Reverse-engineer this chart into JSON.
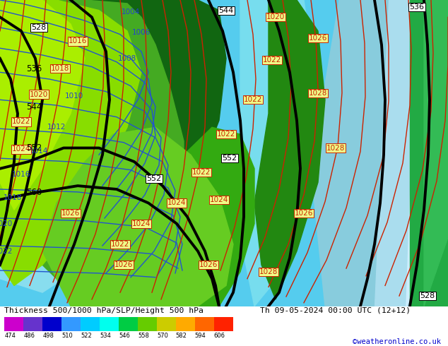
{
  "title_left": "Thickness 500/1000 hPa/SLP/Height 500 hPa",
  "title_right": "Th 09-05-2024 00:00 UTC (12+12)",
  "credit": "©weatheronline.co.uk",
  "colorbar_levels": [
    474,
    486,
    498,
    510,
    522,
    534,
    546,
    558,
    570,
    582,
    594,
    606
  ],
  "colorbar_colors": [
    "#cc00cc",
    "#6633cc",
    "#0000cc",
    "#3399ff",
    "#00ccff",
    "#00ffee",
    "#00cc44",
    "#66cc00",
    "#cccc00",
    "#ffaa00",
    "#ff6600",
    "#ff2200"
  ],
  "fig_width": 6.34,
  "fig_height": 4.9,
  "dpi": 100,
  "font_color_title": "#000000",
  "font_color_credit": "#0000cc"
}
